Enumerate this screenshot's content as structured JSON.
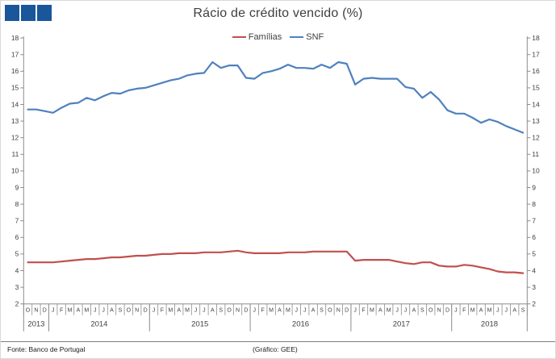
{
  "title": "Rácio de crédito vencido (%)",
  "logo": {
    "name": "GEE logo (three squares)",
    "color": "#19569a"
  },
  "legend": {
    "items": [
      {
        "label": "Famílias",
        "color": "#c0504d"
      },
      {
        "label": "SNF",
        "color": "#4f81bd"
      }
    ]
  },
  "footer": {
    "source": "Fonte: Banco de Portugal",
    "credit": "(Gráfico: GEE)"
  },
  "chart_data": {
    "type": "line",
    "title": "Rácio de crédito vencido (%)",
    "xlabel": "",
    "ylabel": "",
    "ylim": [
      2,
      18
    ],
    "ytick_step": 1,
    "grid": false,
    "legend_position": "top-center",
    "dual_y_axis_labels": true,
    "x_unit": "month",
    "month_labels": [
      "O",
      "N",
      "D",
      "J",
      "F",
      "M",
      "A",
      "M",
      "J",
      "J",
      "A",
      "S",
      "O",
      "N",
      "D",
      "J",
      "F",
      "M",
      "A",
      "M",
      "J",
      "J",
      "A",
      "S",
      "O",
      "N",
      "D",
      "J",
      "F",
      "M",
      "A",
      "M",
      "J",
      "J",
      "A",
      "S",
      "O",
      "N",
      "D",
      "J",
      "F",
      "M",
      "A",
      "M",
      "J",
      "J",
      "A",
      "S",
      "O",
      "N",
      "D",
      "J",
      "F",
      "M",
      "A",
      "M",
      "J",
      "J",
      "A",
      "S"
    ],
    "year_groups": [
      {
        "label": "2013",
        "months": 3
      },
      {
        "label": "2014",
        "months": 12
      },
      {
        "label": "2015",
        "months": 12
      },
      {
        "label": "2016",
        "months": 12
      },
      {
        "label": "2017",
        "months": 12
      },
      {
        "label": "2018",
        "months": 9
      }
    ],
    "series": [
      {
        "name": "Famílias",
        "color": "#c0504d",
        "values": [
          4.5,
          4.5,
          4.5,
          4.5,
          4.55,
          4.6,
          4.65,
          4.7,
          4.7,
          4.75,
          4.8,
          4.8,
          4.85,
          4.9,
          4.9,
          4.95,
          5.0,
          5.0,
          5.05,
          5.05,
          5.05,
          5.1,
          5.1,
          5.1,
          5.15,
          5.2,
          5.1,
          5.05,
          5.05,
          5.05,
          5.05,
          5.1,
          5.1,
          5.1,
          5.15,
          5.15,
          5.15,
          5.15,
          5.15,
          4.6,
          4.65,
          4.65,
          4.65,
          4.65,
          4.55,
          4.45,
          4.4,
          4.5,
          4.5,
          4.3,
          4.25,
          4.25,
          4.35,
          4.3,
          4.2,
          4.1,
          3.95,
          3.9,
          3.9,
          3.85
        ]
      },
      {
        "name": "SNF",
        "color": "#4f81bd",
        "values": [
          13.7,
          13.7,
          13.6,
          13.5,
          13.8,
          14.05,
          14.1,
          14.4,
          14.25,
          14.5,
          14.7,
          14.65,
          14.85,
          14.95,
          15.0,
          15.15,
          15.3,
          15.45,
          15.55,
          15.75,
          15.85,
          15.9,
          16.55,
          16.2,
          16.35,
          16.35,
          15.6,
          15.55,
          15.9,
          16.0,
          16.15,
          16.4,
          16.2,
          16.2,
          16.15,
          16.4,
          16.2,
          16.55,
          16.45,
          15.2,
          15.55,
          15.6,
          15.55,
          15.55,
          15.55,
          15.05,
          14.95,
          14.4,
          14.75,
          14.3,
          13.65,
          13.45,
          13.45,
          13.2,
          12.9,
          13.1,
          12.95,
          12.7,
          12.5,
          12.3
        ]
      }
    ]
  }
}
